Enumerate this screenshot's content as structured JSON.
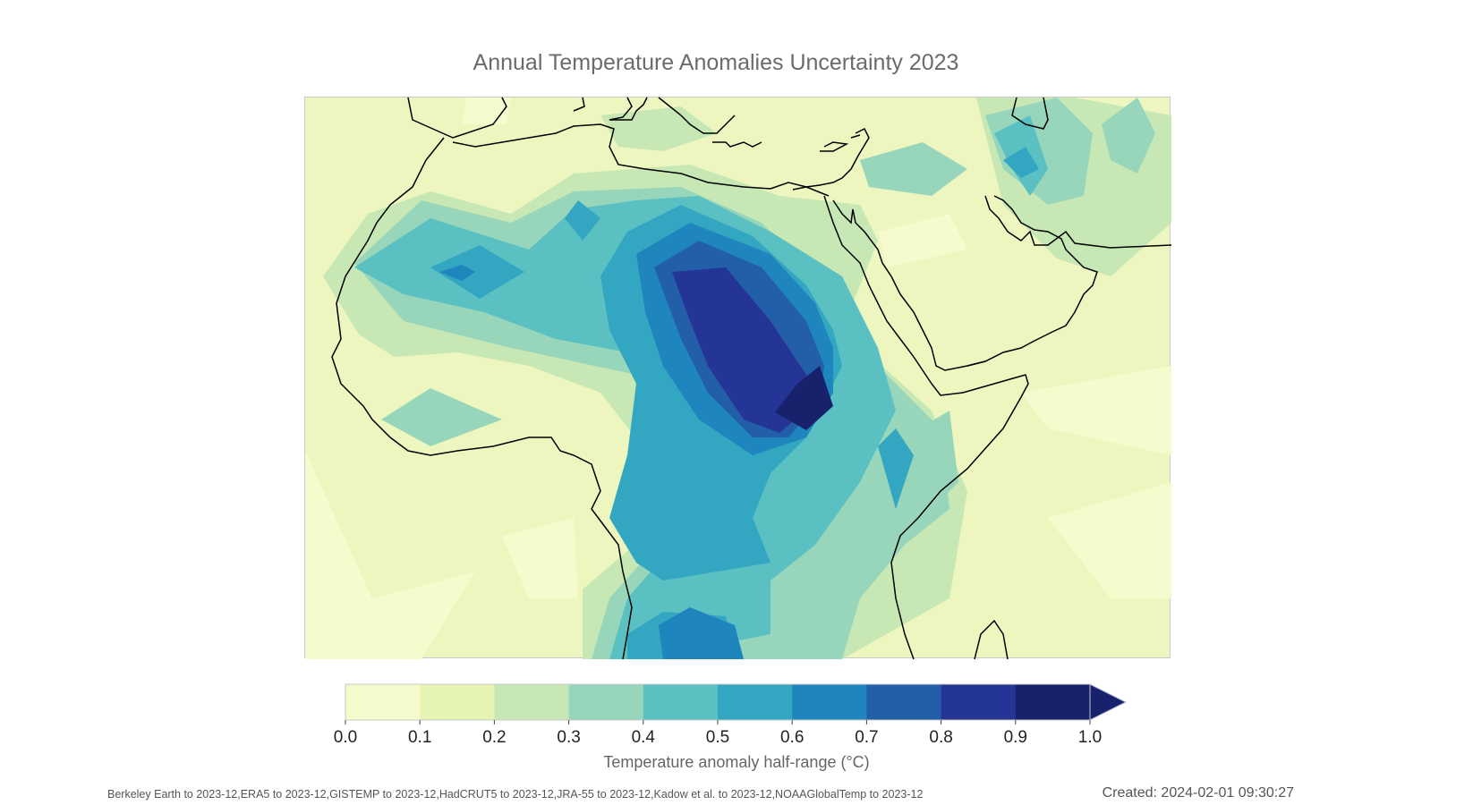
{
  "title": "Annual Temperature Anomalies Uncertainty 2023",
  "colorbar": {
    "label": "Temperature anomaly half-range (°C)",
    "ticks": [
      "0.0",
      "0.1",
      "0.2",
      "0.3",
      "0.4",
      "0.5",
      "0.6",
      "0.7",
      "0.8",
      "0.9",
      "1.0"
    ],
    "colors": [
      "#f6fbcd",
      "#e6f4b3",
      "#c7e8b4",
      "#97d6bb",
      "#5ac0c1",
      "#33a6c2",
      "#1e85bd",
      "#235fa8",
      "#253595",
      "#18216b"
    ],
    "extend": "max"
  },
  "map": {
    "region": "Africa and the Middle East",
    "background_color": "#edf6bf",
    "coastline_color": "#000000"
  },
  "footer": {
    "sources": "Berkeley Earth to 2023-12,ERA5 to 2023-12,GISTEMP to 2023-12,HadCRUT5 to 2023-12,JRA-55 to 2023-12,Kadow et al. to 2023-12,NOAAGlobalTemp to 2023-12",
    "created": "Created: 2024-02-01 09:30:27"
  }
}
